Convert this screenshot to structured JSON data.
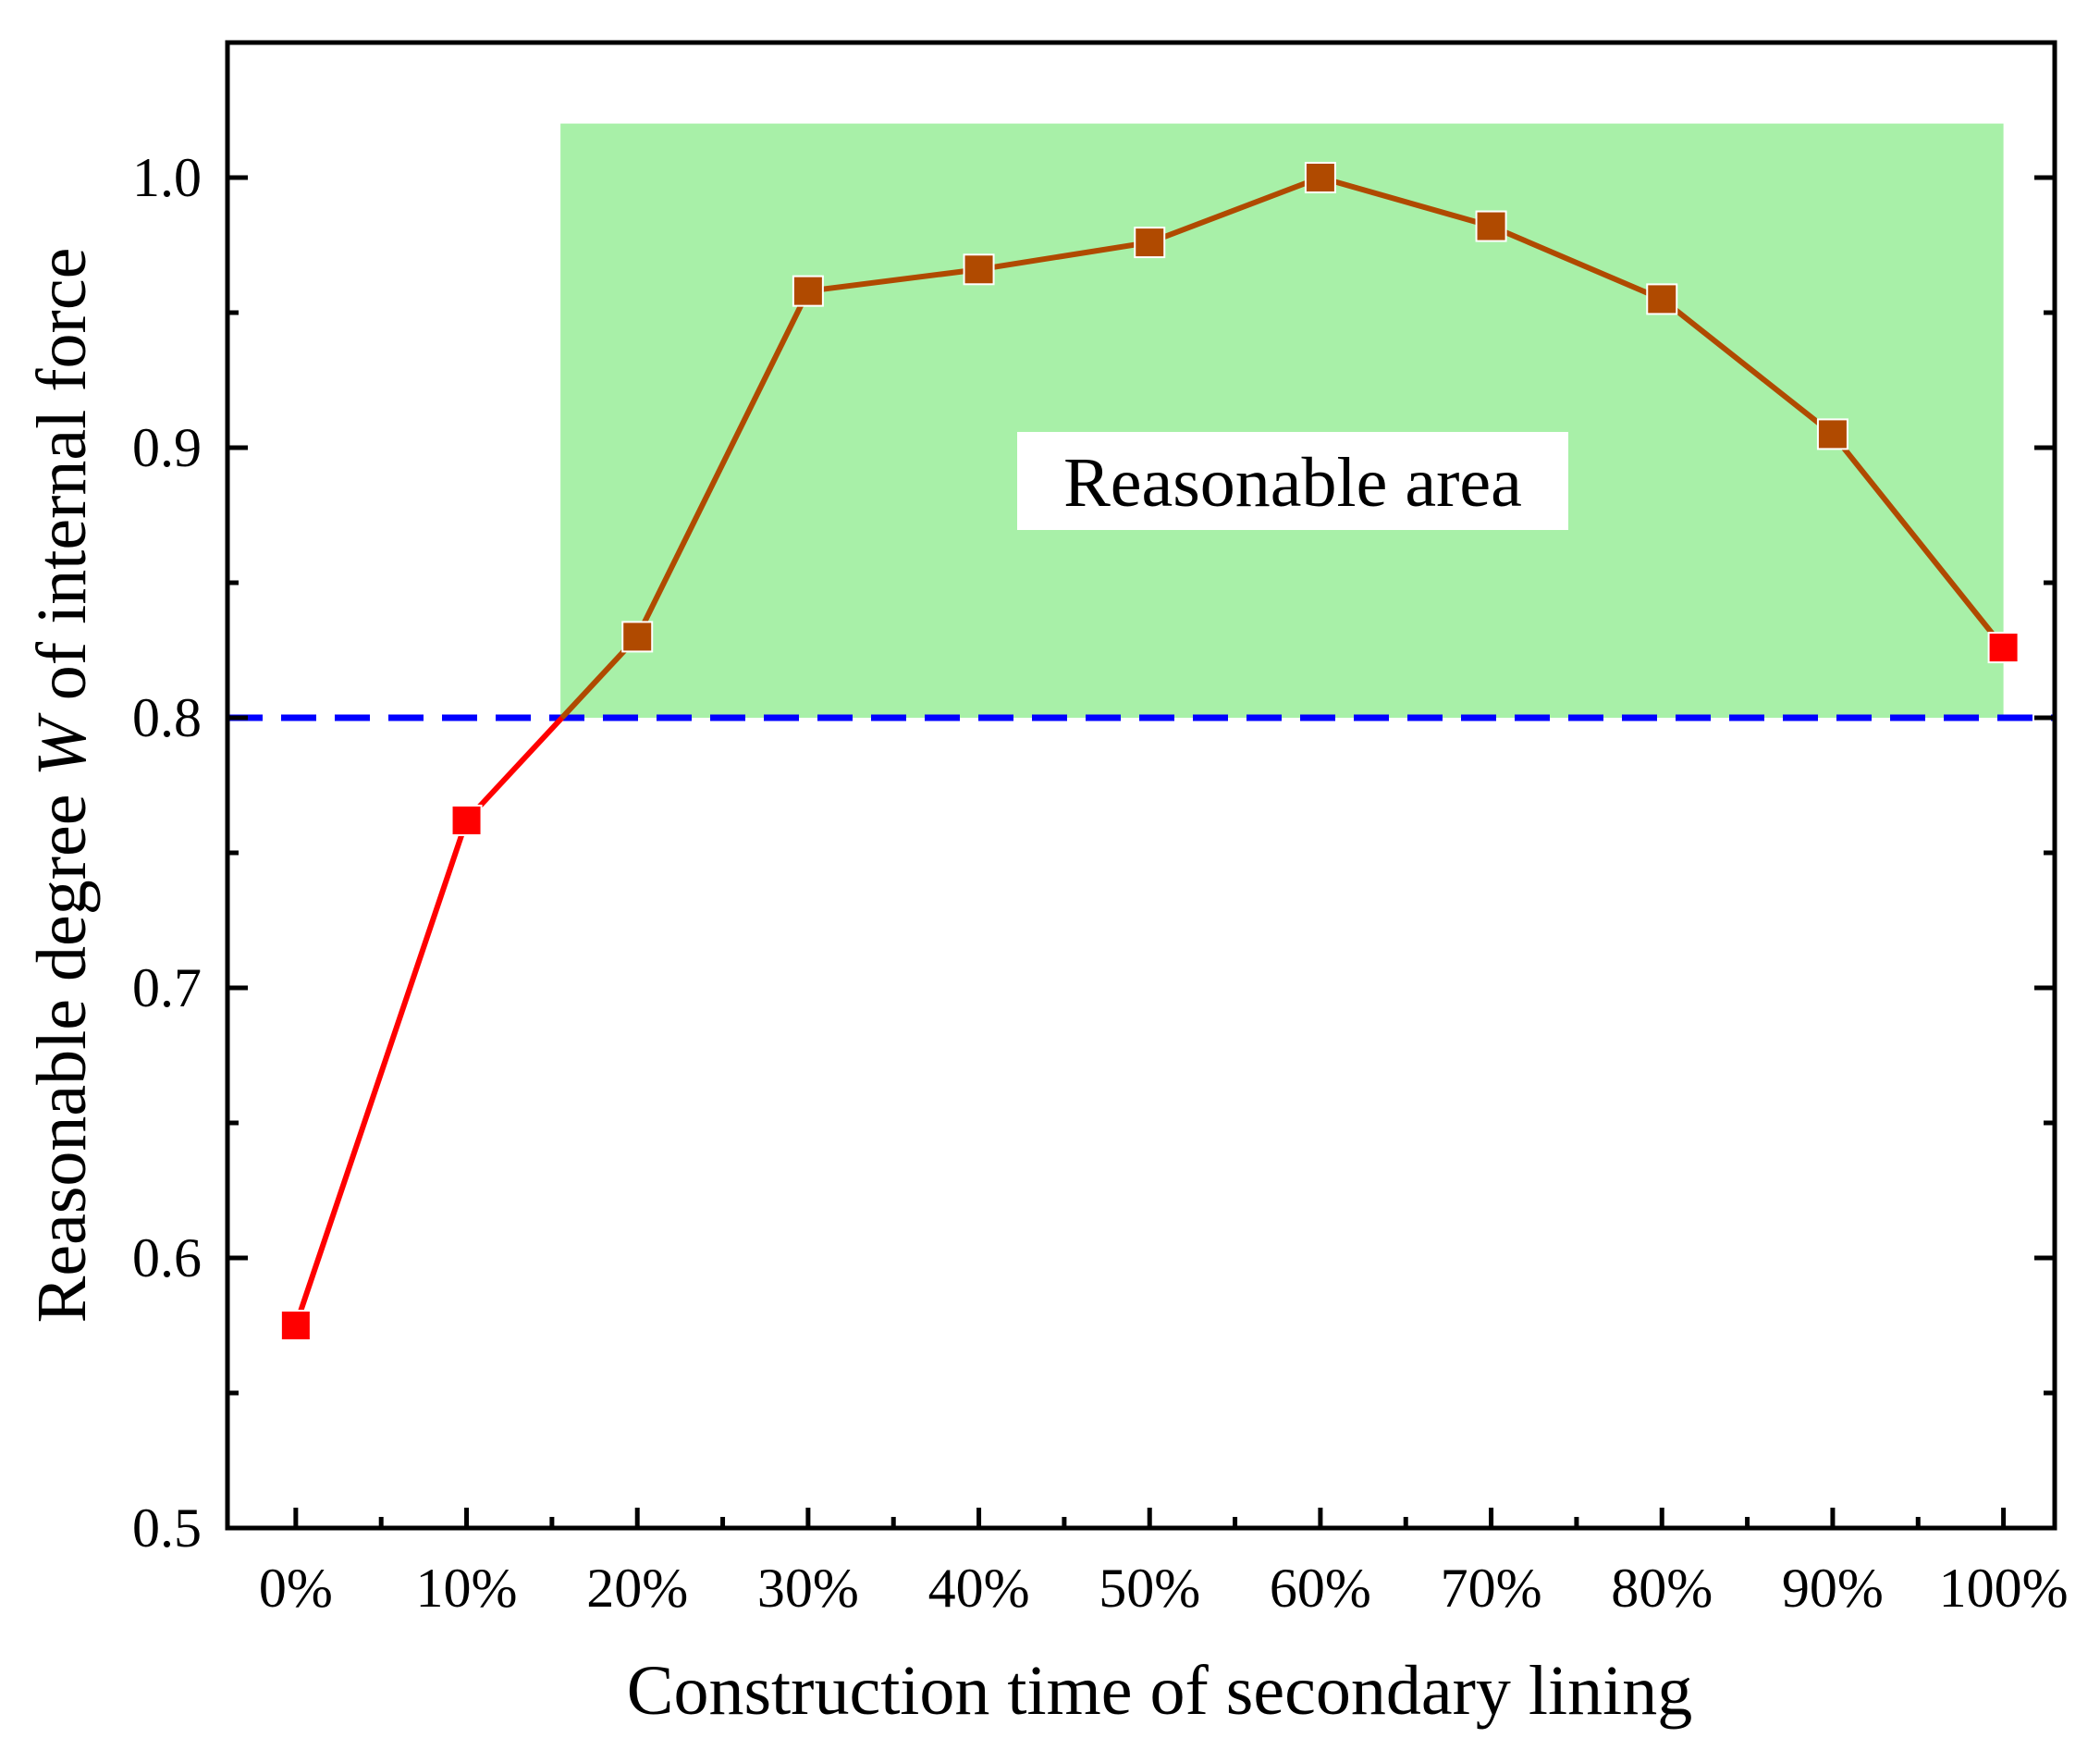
{
  "chart_data": {
    "type": "line",
    "categories": [
      "0%",
      "10%",
      "20%",
      "30%",
      "40%",
      "50%",
      "60%",
      "70%",
      "80%",
      "90%",
      "100%"
    ],
    "series": [
      {
        "name": "Reasonable degree W",
        "values": [
          0.575,
          0.762,
          0.83,
          0.958,
          0.966,
          0.976,
          1.0,
          0.982,
          0.955,
          0.905,
          0.826
        ],
        "color_below": "#ff0000",
        "color_above": "#b04a00"
      }
    ],
    "threshold": {
      "value": 0.8,
      "color": "#0000ff",
      "style": "dashed"
    },
    "reasonable_region": {
      "x_start": 1.55,
      "x_end": 10.0,
      "y_start": 0.8,
      "y_end": 1.02,
      "color": "#a8f0a8",
      "label": "Reasonable area"
    },
    "xlabel": "Construction time of secondary lining",
    "ylabel_parts": [
      "Reasonable degree ",
      "W",
      " of internal force"
    ],
    "ylim": [
      0.5,
      1.05
    ],
    "xlim": [
      -0.4,
      10.3
    ],
    "y_ticks": [
      0.5,
      0.6,
      0.7,
      0.8,
      0.9,
      1.0
    ],
    "y_tick_labels": [
      "0.5",
      "0.6",
      "0.7",
      "0.8",
      "0.9",
      "1.0"
    ],
    "grid": false
  }
}
